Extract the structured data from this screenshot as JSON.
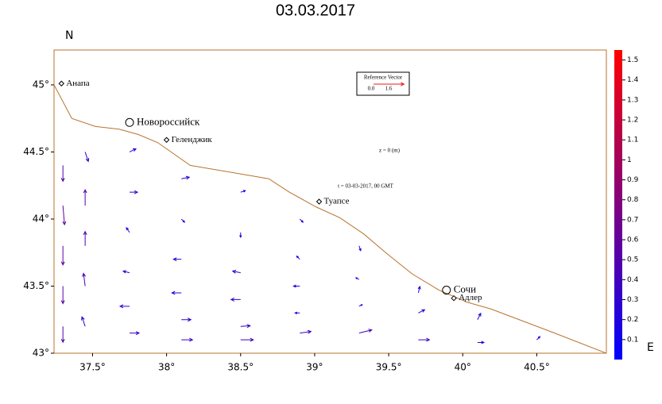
{
  "chart_data": {
    "type": "vector-map",
    "title": "03.03.2017",
    "x_label": "E",
    "y_label": "N",
    "xlim": [
      37.24,
      40.97
    ],
    "ylim": [
      43,
      45.26
    ],
    "xticks": [
      {
        "value": 37.5,
        "label": "37.5°"
      },
      {
        "value": 38,
        "label": "38°"
      },
      {
        "value": 38.5,
        "label": "38.5°"
      },
      {
        "value": 39,
        "label": "39°"
      },
      {
        "value": 39.5,
        "label": "39.5°"
      },
      {
        "value": 40,
        "label": "40°"
      },
      {
        "value": 40.5,
        "label": "40.5°"
      }
    ],
    "yticks": [
      {
        "value": 43,
        "label": "43°"
      },
      {
        "value": 43.5,
        "label": "43.5°"
      },
      {
        "value": 44,
        "label": "44°"
      },
      {
        "value": 44.5,
        "label": "44.5°"
      },
      {
        "value": 45,
        "label": "45°"
      }
    ],
    "coast_color": "#b8732e",
    "coastline": {
      "lon": [
        37.24,
        37.36,
        37.52,
        37.68,
        37.81,
        37.94,
        38.16,
        38.48,
        38.69,
        38.83,
        39.01,
        39.17,
        39.33,
        39.49,
        39.66,
        39.84,
        40.03,
        40.19,
        40.62,
        40.97
      ],
      "lat": [
        45.0,
        44.75,
        44.69,
        44.67,
        44.63,
        44.57,
        44.4,
        44.34,
        44.3,
        44.2,
        44.09,
        44.01,
        43.89,
        43.74,
        43.59,
        43.47,
        43.38,
        43.33,
        43.15,
        43.0
      ]
    },
    "places": [
      {
        "name": "Анапа",
        "lon": 37.29,
        "lat": 45.01,
        "major": false
      },
      {
        "name": "Новороссийск",
        "lon": 37.75,
        "lat": 44.72,
        "major": true
      },
      {
        "name": "Геленджик",
        "lon": 38.0,
        "lat": 44.59,
        "major": false
      },
      {
        "name": "Туапсе",
        "lon": 39.03,
        "lat": 44.13,
        "major": false
      },
      {
        "name": "Сочи",
        "lon": 39.89,
        "lat": 43.47,
        "major": true
      },
      {
        "name": "Адлер",
        "lon": 39.94,
        "lat": 43.41,
        "major": false
      }
    ],
    "annotations": [
      "z = 0 (m)",
      "t = 03-03-2017, 00 GMT"
    ],
    "reference_vector": {
      "title": "Reference Vector",
      "labels": [
        "0.0",
        "1.6"
      ],
      "length": 1.6,
      "color": "#e8191a"
    },
    "colorbar": {
      "lim": [
        0,
        1.55
      ],
      "ticks": [
        0.1,
        0.2,
        0.3,
        0.4,
        0.5,
        0.6,
        0.7,
        0.8,
        0.9,
        1,
        1.1,
        1.2,
        1.3,
        1.4,
        1.5
      ],
      "colors": [
        "#0000ff",
        "#ff0000"
      ]
    },
    "vectors": {
      "lon": [
        37.3,
        37.3,
        37.3,
        37.3,
        37.3,
        37.45,
        37.45,
        37.45,
        37.45,
        37.45,
        37.75,
        37.75,
        37.75,
        37.75,
        37.75,
        37.75,
        38.1,
        38.1,
        38.1,
        38.1,
        38.1,
        38.1,
        38.5,
        38.5,
        38.5,
        38.5,
        38.5,
        38.5,
        38.9,
        38.9,
        38.9,
        38.9,
        38.9,
        39.3,
        39.3,
        39.3,
        39.3,
        39.7,
        39.7,
        39.7,
        40.1,
        40.1,
        40.5
      ],
      "lat": [
        44.4,
        44.1,
        43.8,
        43.5,
        43.2,
        44.5,
        44.1,
        43.8,
        43.5,
        43.2,
        44.5,
        44.2,
        43.9,
        43.6,
        43.35,
        43.15,
        44.3,
        44.0,
        43.7,
        43.45,
        43.25,
        43.1,
        44.2,
        43.9,
        43.6,
        43.4,
        43.2,
        43.1,
        44.0,
        43.7,
        43.5,
        43.3,
        43.15,
        43.8,
        43.55,
        43.35,
        43.15,
        43.45,
        43.3,
        43.1,
        43.25,
        43.08,
        43.1
      ],
      "u": [
        0,
        0.05,
        0,
        0,
        0,
        0.1,
        0,
        0,
        -0.05,
        -0.1,
        0.2,
        0.25,
        -0.1,
        -0.2,
        -0.3,
        0.3,
        0.25,
        0.1,
        -0.25,
        -0.3,
        0.3,
        0.35,
        0.15,
        0,
        -0.25,
        -0.3,
        0.3,
        0.4,
        0.1,
        -0.1,
        -0.2,
        -0.15,
        0.35,
        0.05,
        -0.1,
        0.1,
        0.4,
        0.05,
        0.2,
        0.35,
        0.1,
        0.2,
        0.1
      ],
      "v": [
        -0.5,
        -0.6,
        -0.6,
        -0.55,
        -0.5,
        -0.3,
        0.5,
        0.45,
        0.4,
        0.3,
        0.1,
        0,
        0.15,
        0.05,
        0,
        0,
        0.05,
        -0.1,
        0,
        0,
        0,
        0,
        0.05,
        -0.15,
        0.05,
        0,
        0.02,
        0,
        -0.1,
        0.1,
        0,
        0,
        0.05,
        -0.15,
        0.05,
        0.05,
        0.1,
        0.2,
        0.1,
        0,
        0.2,
        0,
        0.1
      ]
    }
  }
}
